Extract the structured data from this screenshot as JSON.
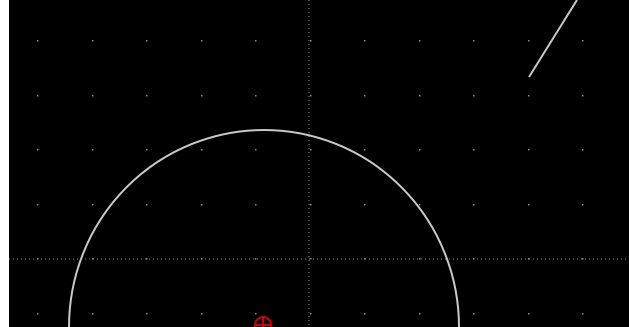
{
  "app": {
    "view": "cad-drawing-canvas"
  },
  "canvas": {
    "background_color": "#000000",
    "grid_dot_color": "#8a8a8a",
    "crosshair_color": "#8a8a8a",
    "crosshair_style": "dotted",
    "entity_color": "#c8c8c8",
    "marker_color": "#d00000",
    "grid_visible": true
  },
  "entities": [
    {
      "type": "arc",
      "name": "arc-entity"
    },
    {
      "type": "line",
      "name": "line-entity"
    }
  ],
  "markers": [
    {
      "type": "origin-crosshair",
      "icon": "circle-crosshair-icon"
    }
  ]
}
